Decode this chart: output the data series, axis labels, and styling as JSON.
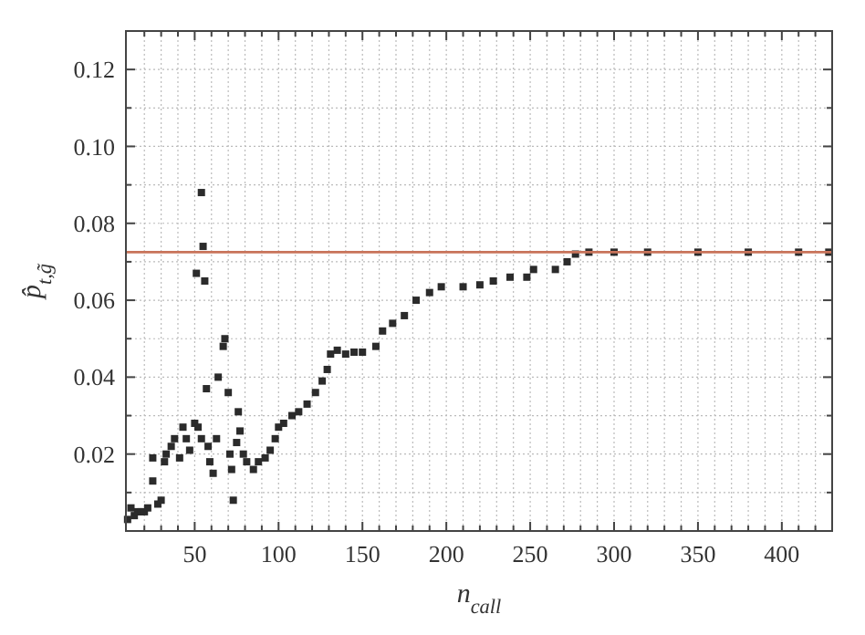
{
  "chart_data": {
    "type": "scatter",
    "xlabel": "n$_{call}$",
    "ylabel": "p̂$_{t,g̃}$",
    "xlim": [
      9,
      430
    ],
    "ylim": [
      0,
      0.13
    ],
    "xticks": [
      {
        "value": 20,
        "label": null
      },
      {
        "value": 30,
        "label": null
      },
      {
        "value": 40,
        "label": null
      },
      50,
      {
        "value": 60,
        "label": null
      },
      {
        "value": 70,
        "label": null
      },
      {
        "value": 80,
        "label": null
      },
      {
        "value": 90,
        "label": null
      },
      100,
      {
        "value": 110,
        "label": null
      },
      {
        "value": 120,
        "label": null
      },
      {
        "value": 130,
        "label": null
      },
      {
        "value": 140,
        "label": null
      },
      150,
      {
        "value": 160,
        "label": null
      },
      {
        "value": 170,
        "label": null
      },
      {
        "value": 180,
        "label": null
      },
      {
        "value": 190,
        "label": null
      },
      200,
      {
        "value": 210,
        "label": null
      },
      {
        "value": 220,
        "label": null
      },
      {
        "value": 230,
        "label": null
      },
      {
        "value": 240,
        "label": null
      },
      250,
      {
        "value": 260,
        "label": null
      },
      {
        "value": 270,
        "label": null
      },
      {
        "value": 280,
        "label": null
      },
      {
        "value": 290,
        "label": null
      },
      300,
      {
        "value": 310,
        "label": null
      },
      {
        "value": 320,
        "label": null
      },
      {
        "value": 330,
        "label": null
      },
      {
        "value": 340,
        "label": null
      },
      350,
      {
        "value": 360,
        "label": null
      },
      {
        "value": 370,
        "label": null
      },
      {
        "value": 380,
        "label": null
      },
      {
        "value": 390,
        "label": null
      },
      400,
      {
        "value": 410,
        "label": null
      },
      {
        "value": 420,
        "label": null
      }
    ],
    "yticks": [
      {
        "value": 0.01,
        "label": null
      },
      {
        "value": 0.02,
        "label": "0.02"
      },
      {
        "value": 0.03,
        "label": null
      },
      {
        "value": 0.04,
        "label": "0.04"
      },
      {
        "value": 0.05,
        "label": null
      },
      {
        "value": 0.06,
        "label": "0.06"
      },
      {
        "value": 0.07,
        "label": null
      },
      {
        "value": 0.08,
        "label": "0.08"
      },
      {
        "value": 0.09,
        "label": null
      },
      {
        "value": 0.1,
        "label": "0.10"
      },
      {
        "value": 0.11,
        "label": null
      },
      {
        "value": 0.12,
        "label": "0.12"
      }
    ],
    "grid": true,
    "marker": "square",
    "ref_lines": [
      {
        "axis": "y",
        "value": 0.0725,
        "color": "#c8735a"
      }
    ],
    "series": [
      {
        "color": "#2b2b2b",
        "x": [
          10,
          12,
          14,
          16,
          18,
          20,
          22,
          25,
          25,
          28,
          30,
          32,
          33,
          36,
          38,
          41,
          43,
          45,
          47,
          50,
          51,
          52,
          54,
          54,
          55,
          56,
          57,
          58,
          59,
          61,
          63,
          64,
          67,
          68,
          70,
          71,
          72,
          73,
          75,
          76,
          77,
          79,
          81,
          85,
          88,
          92,
          95,
          98,
          100,
          103,
          108,
          112,
          117,
          122,
          126,
          129,
          131,
          135,
          140,
          145,
          150,
          158,
          162,
          168,
          175,
          182,
          190,
          197,
          210,
          220,
          228,
          238,
          248,
          252,
          265,
          272,
          277,
          285,
          300,
          320,
          350,
          380,
          410,
          428
        ],
        "values": [
          0.003,
          0.006,
          0.004,
          0.005,
          0.005,
          0.005,
          0.006,
          0.013,
          0.019,
          0.007,
          0.008,
          0.018,
          0.02,
          0.022,
          0.024,
          0.019,
          0.027,
          0.024,
          0.021,
          0.028,
          0.067,
          0.027,
          0.088,
          0.024,
          0.074,
          0.065,
          0.037,
          0.022,
          0.018,
          0.015,
          0.024,
          0.04,
          0.048,
          0.05,
          0.036,
          0.02,
          0.016,
          0.008,
          0.023,
          0.031,
          0.026,
          0.02,
          0.018,
          0.016,
          0.018,
          0.019,
          0.021,
          0.024,
          0.027,
          0.028,
          0.03,
          0.031,
          0.033,
          0.036,
          0.039,
          0.042,
          0.046,
          0.047,
          0.046,
          0.0465,
          0.0465,
          0.048,
          0.052,
          0.054,
          0.056,
          0.06,
          0.062,
          0.0635,
          0.0635,
          0.064,
          0.065,
          0.066,
          0.066,
          0.068,
          0.068,
          0.07,
          0.072,
          0.0725,
          0.0725,
          0.0725,
          0.0725,
          0.0725,
          0.0725,
          0.0725
        ]
      }
    ]
  }
}
